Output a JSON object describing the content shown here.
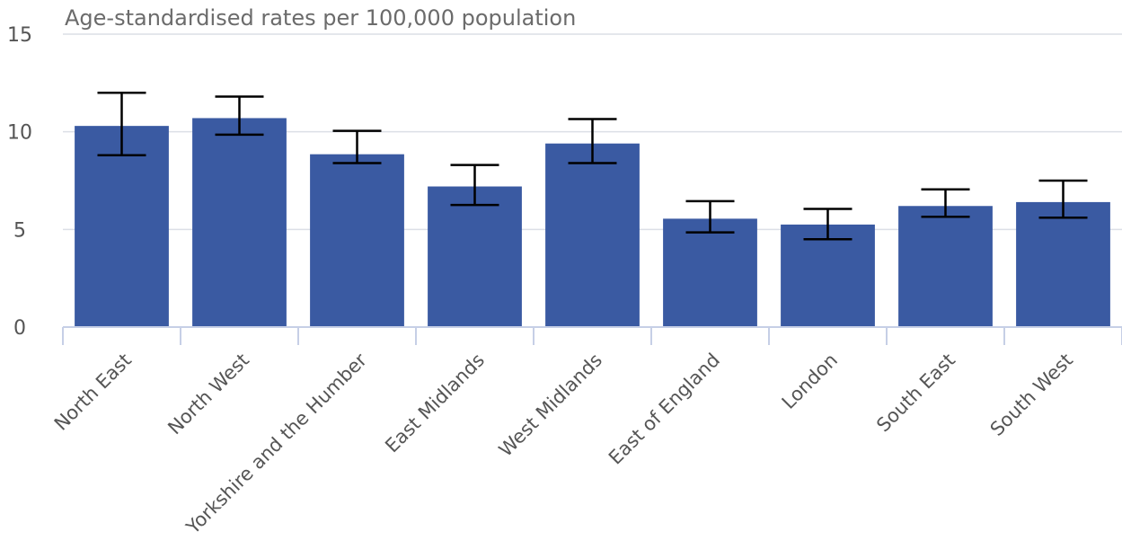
{
  "chart_data": {
    "type": "bar",
    "title": "Age-standardised rates per 100,000 population",
    "xlabel": "",
    "ylabel": "",
    "ylim": [
      0,
      15
    ],
    "yticks": [
      0,
      5,
      10,
      15
    ],
    "grid": true,
    "bar_color": "#3a5aa2",
    "error_bar_color": "#000000",
    "categories": [
      "North East",
      "North West",
      "Yorkshire and the Humber",
      "East Midlands",
      "West Midlands",
      "East of England",
      "London",
      "South East",
      "South West"
    ],
    "values": [
      10.3,
      10.7,
      8.85,
      7.2,
      9.4,
      5.55,
      5.25,
      6.2,
      6.4
    ],
    "error_low": [
      8.8,
      9.85,
      8.4,
      6.25,
      8.4,
      4.85,
      4.5,
      5.65,
      5.6
    ],
    "error_high": [
      12.0,
      11.8,
      10.05,
      8.3,
      10.65,
      6.45,
      6.05,
      7.05,
      7.5
    ]
  }
}
